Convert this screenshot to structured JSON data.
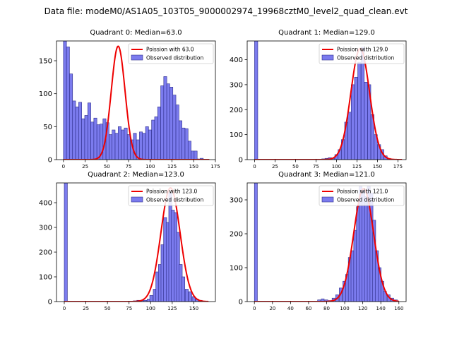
{
  "figure_title": "Data file: modeM0/AS1A05_103T05_9000002974_19968cztM0_level2_quad_clean.evt",
  "chart_data": [
    {
      "type": "bar",
      "title": "Quadrant 0: Median=63.0",
      "xlim": [
        -8,
        175
      ],
      "ylim": [
        0,
        180
      ],
      "xticks": [
        0,
        25,
        50,
        75,
        100,
        125,
        150,
        175
      ],
      "yticks": [
        0,
        50,
        100,
        150
      ],
      "bin_width": 3.5,
      "bins": [
        [
          0,
          180
        ],
        [
          3.5,
          171
        ],
        [
          7,
          130
        ],
        [
          10.5,
          89
        ],
        [
          14,
          80
        ],
        [
          17.5,
          87
        ],
        [
          21,
          62
        ],
        [
          24.5,
          67
        ],
        [
          28,
          86
        ],
        [
          31.5,
          57
        ],
        [
          35,
          63
        ],
        [
          38.5,
          53
        ],
        [
          42,
          54
        ],
        [
          45.5,
          62
        ],
        [
          49,
          56
        ],
        [
          52.5,
          38
        ],
        [
          56,
          45
        ],
        [
          59.5,
          40
        ],
        [
          63,
          50
        ],
        [
          66.5,
          45
        ],
        [
          70,
          48
        ],
        [
          73.5,
          38
        ],
        [
          77,
          30
        ],
        [
          80.5,
          40
        ],
        [
          84,
          30
        ],
        [
          87.5,
          42
        ],
        [
          91,
          40
        ],
        [
          94.5,
          50
        ],
        [
          98,
          45
        ],
        [
          101.5,
          60
        ],
        [
          105,
          65
        ],
        [
          108.5,
          80
        ],
        [
          112,
          112
        ],
        [
          115.5,
          126
        ],
        [
          119,
          115
        ],
        [
          122.5,
          110
        ],
        [
          126,
          98
        ],
        [
          129.5,
          83
        ],
        [
          133,
          59
        ],
        [
          136.5,
          48
        ],
        [
          140,
          47
        ],
        [
          143.5,
          28
        ],
        [
          147,
          13
        ],
        [
          150.5,
          13
        ],
        [
          154,
          1
        ],
        [
          157.5,
          2
        ]
      ],
      "poisson": {
        "label": "Poission with 63.0",
        "lambda": 63.0,
        "peak": 172,
        "x_range": [
          0,
          168
        ]
      },
      "legend": [
        "Poission with 63.0",
        "Observed distribution"
      ]
    },
    {
      "type": "bar",
      "title": "Quadrant 1: Median=129.0",
      "xlim": [
        -9,
        185
      ],
      "ylim": [
        0,
        475
      ],
      "xticks": [
        0,
        25,
        50,
        75,
        100,
        125,
        150,
        175
      ],
      "yticks": [
        0,
        100,
        200,
        300,
        400
      ],
      "bin_width": 3.9,
      "bins": [
        [
          0,
          475
        ],
        [
          74,
          2
        ],
        [
          78,
          2
        ],
        [
          82,
          3
        ],
        [
          86,
          5
        ],
        [
          90,
          8
        ],
        [
          94,
          5
        ],
        [
          98,
          20
        ],
        [
          102,
          40
        ],
        [
          106,
          80
        ],
        [
          110,
          150
        ],
        [
          114,
          190
        ],
        [
          118,
          300
        ],
        [
          122,
          330
        ],
        [
          126,
          390
        ],
        [
          130,
          450
        ],
        [
          134,
          310
        ],
        [
          138,
          300
        ],
        [
          142,
          180
        ],
        [
          146,
          100
        ],
        [
          150,
          60
        ],
        [
          154,
          40
        ],
        [
          158,
          15
        ],
        [
          162,
          5
        ],
        [
          166,
          2
        ]
      ],
      "poisson": {
        "label": "Poission with 129.0",
        "lambda": 129.0,
        "peak": 445,
        "x_range": [
          0,
          180
        ]
      },
      "legend": [
        "Poission with 129.0",
        "Observed distribution"
      ]
    },
    {
      "type": "bar",
      "title": "Quadrant 2: Median=123.0",
      "xlim": [
        -9,
        175
      ],
      "ylim": [
        0,
        480
      ],
      "xticks": [
        0,
        25,
        50,
        75,
        100,
        125,
        150
      ],
      "yticks": [
        0,
        100,
        200,
        300,
        400
      ],
      "bin_width": 3.6,
      "bins": [
        [
          0,
          480
        ],
        [
          72,
          2
        ],
        [
          76,
          2
        ],
        [
          80,
          3
        ],
        [
          84,
          5
        ],
        [
          88,
          4
        ],
        [
          92,
          5
        ],
        [
          96,
          10
        ],
        [
          99,
          25
        ],
        [
          103,
          50
        ],
        [
          106,
          120
        ],
        [
          109,
          150
        ],
        [
          112,
          230
        ],
        [
          115,
          340
        ],
        [
          118,
          320
        ],
        [
          121,
          440
        ],
        [
          124,
          370
        ],
        [
          127,
          360
        ],
        [
          130,
          280
        ],
        [
          133,
          150
        ],
        [
          136,
          100
        ],
        [
          140,
          50
        ],
        [
          144,
          40
        ],
        [
          148,
          20
        ],
        [
          152,
          10
        ],
        [
          156,
          5
        ]
      ],
      "poisson": {
        "label": "Poission with 123.0",
        "lambda": 123.0,
        "peak": 460,
        "x_range": [
          0,
          167
        ]
      },
      "legend": [
        "Poission with 123.0",
        "Observed distribution"
      ]
    },
    {
      "type": "bar",
      "title": "Quadrant 3: Median=121.0",
      "xlim": [
        -8,
        168
      ],
      "ylim": [
        0,
        350
      ],
      "xticks": [
        0,
        20,
        40,
        60,
        80,
        100,
        120,
        140,
        160
      ],
      "yticks": [
        0,
        100,
        200,
        300
      ],
      "bin_width": 3.3,
      "bins": [
        [
          0,
          350
        ],
        [
          70,
          5
        ],
        [
          74,
          8
        ],
        [
          78,
          5
        ],
        [
          82,
          3
        ],
        [
          86,
          10
        ],
        [
          90,
          20
        ],
        [
          94,
          40
        ],
        [
          98,
          60
        ],
        [
          101,
          80
        ],
        [
          104,
          130
        ],
        [
          107,
          150
        ],
        [
          110,
          210
        ],
        [
          113,
          280
        ],
        [
          116,
          340
        ],
        [
          119,
          330
        ],
        [
          122,
          310
        ],
        [
          125,
          340
        ],
        [
          128,
          320
        ],
        [
          131,
          240
        ],
        [
          134,
          150
        ],
        [
          137,
          100
        ],
        [
          140,
          60
        ],
        [
          143,
          30
        ],
        [
          147,
          20
        ],
        [
          151,
          10
        ],
        [
          155,
          5
        ]
      ],
      "poisson": {
        "label": "Poission with 121.0",
        "lambda": 121.0,
        "peak": 333,
        "x_range": [
          0,
          160
        ]
      },
      "legend": [
        "Poission with 121.0",
        "Observed distribution"
      ]
    }
  ],
  "colors": {
    "bar_fill": "#7b7bee",
    "bar_edge": "#2c2c88",
    "poisson_line": "#ee0000"
  }
}
